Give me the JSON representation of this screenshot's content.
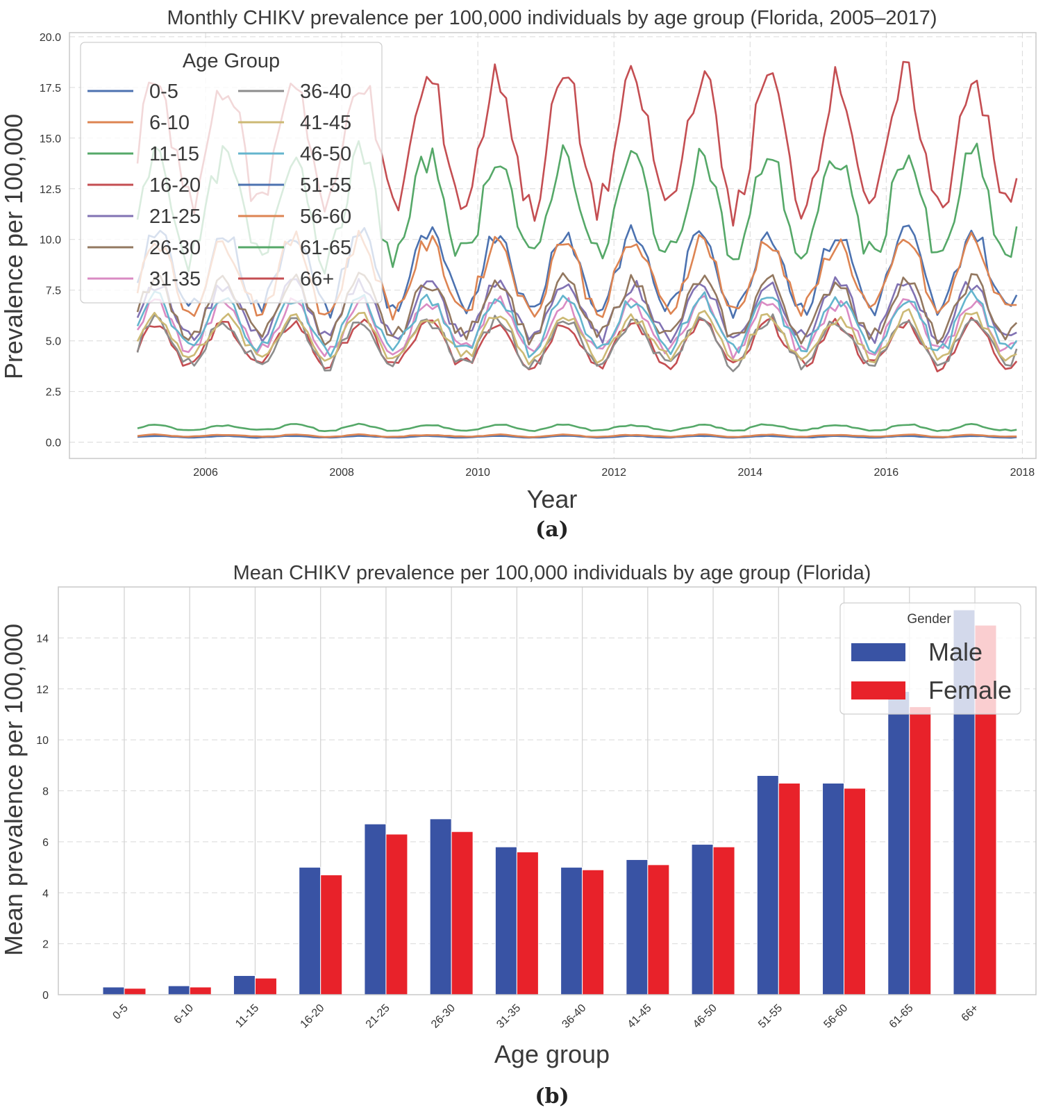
{
  "panel_a_label": "(a)",
  "panel_b_label": "(b)",
  "chart_data": [
    {
      "type": "line",
      "title": "Monthly CHIKV prevalence per 100,000 individuals by age group (Florida, 2005–2017)",
      "xlabel": "Year",
      "ylabel": "Prevalence per 100,000",
      "xlim": [
        2004.0,
        2018.2
      ],
      "ylim": [
        -0.8,
        20.2
      ],
      "x_start": 2005.0,
      "x_end": 2017.92,
      "points_per_series": 156,
      "xticks": [
        "2006",
        "2008",
        "2010",
        "2012",
        "2014",
        "2016",
        "2018"
      ],
      "yticks": [
        "0.0",
        "2.5",
        "5.0",
        "7.5",
        "10.0",
        "12.5",
        "15.0",
        "17.5",
        "20.0"
      ],
      "legend_title": "Age Group",
      "series": [
        {
          "name": "0-5",
          "color": "#4c72b0",
          "mean": 0.27,
          "amplitude": 0.04
        },
        {
          "name": "6-10",
          "color": "#dd8452",
          "mean": 0.32,
          "amplitude": 0.05
        },
        {
          "name": "11-15",
          "color": "#55a868",
          "mean": 0.72,
          "amplitude": 0.14
        },
        {
          "name": "16-20",
          "color": "#c44e52",
          "mean": 4.85,
          "amplitude": 1.05
        },
        {
          "name": "21-25",
          "color": "#8172b3",
          "mean": 6.5,
          "amplitude": 1.35
        },
        {
          "name": "26-30",
          "color": "#937860",
          "mean": 6.6,
          "amplitude": 1.4
        },
        {
          "name": "31-35",
          "color": "#da8bc3",
          "mean": 5.7,
          "amplitude": 1.2
        },
        {
          "name": "36-40",
          "color": "#8c8c8c",
          "mean": 4.95,
          "amplitude": 1.1
        },
        {
          "name": "41-45",
          "color": "#ccb974",
          "mean": 5.2,
          "amplitude": 1.05
        },
        {
          "name": "46-50",
          "color": "#64b5cd",
          "mean": 5.85,
          "amplitude": 1.25
        },
        {
          "name": "51-55",
          "color": "#4c72b0",
          "mean": 8.45,
          "amplitude": 1.9
        },
        {
          "name": "56-60",
          "color": "#dd8452",
          "mean": 8.2,
          "amplitude": 1.75
        },
        {
          "name": "61-65",
          "color": "#55a868",
          "mean": 11.6,
          "amplitude": 2.55
        },
        {
          "name": "66+",
          "color": "#c44e52",
          "mean": 14.8,
          "amplitude": 3.15
        }
      ]
    },
    {
      "type": "bar",
      "title": "Mean CHIKV prevalence per 100,000 individuals by age group (Florida)",
      "xlabel": "Age group",
      "ylabel": "Mean prevalence per 100,000",
      "ylim": [
        0,
        16
      ],
      "yticks": [
        "0",
        "2",
        "4",
        "6",
        "8",
        "10",
        "12",
        "14"
      ],
      "categories": [
        "0-5",
        "6-10",
        "11-15",
        "16-20",
        "21-25",
        "26-30",
        "31-35",
        "36-40",
        "41-45",
        "46-50",
        "51-55",
        "56-60",
        "61-65",
        "66+"
      ],
      "legend_title": "Gender",
      "series": [
        {
          "name": "Male",
          "color": "#3953a4",
          "values": [
            0.3,
            0.35,
            0.75,
            5.0,
            6.7,
            6.9,
            5.8,
            5.0,
            5.3,
            5.9,
            8.6,
            8.3,
            11.9,
            15.1
          ]
        },
        {
          "name": "Female",
          "color": "#e8222a",
          "values": [
            0.25,
            0.3,
            0.65,
            4.7,
            6.3,
            6.4,
            5.6,
            4.9,
            5.1,
            5.8,
            8.3,
            8.1,
            11.3,
            14.5
          ]
        }
      ]
    }
  ]
}
